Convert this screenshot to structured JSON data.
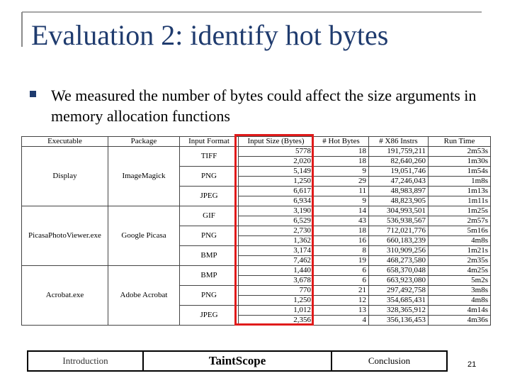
{
  "title": "Evaluation 2: identify hot bytes",
  "bullet": "We measured the number of bytes could affect the size arguments in memory allocation functions",
  "table": {
    "header": [
      "Executable",
      "Package",
      "Input Format",
      "Input Size (Bytes)",
      "# Hot Bytes",
      "# X86 Instrs",
      "Run Time"
    ],
    "groups": [
      {
        "executable": "Display",
        "package": "ImageMagick",
        "formats": [
          {
            "format": "TIFF",
            "rows": [
              [
                "5778",
                "18",
                "191,759,211",
                "2m53s"
              ],
              [
                "2,020",
                "18",
                "82,640,260",
                "1m30s"
              ]
            ]
          },
          {
            "format": "PNG",
            "rows": [
              [
                "5,149",
                "9",
                "19,051,746",
                "1m54s"
              ],
              [
                "1,250",
                "29",
                "47,246,043",
                "1m8s"
              ]
            ]
          },
          {
            "format": "JPEG",
            "rows": [
              [
                "6,617",
                "11",
                "48,983,897",
                "1m13s"
              ],
              [
                "6,934",
                "9",
                "48,823,905",
                "1m11s"
              ]
            ]
          }
        ]
      },
      {
        "executable": "PicasaPhotoViewer.exe",
        "package": "Google Picasa",
        "formats": [
          {
            "format": "GIF",
            "rows": [
              [
                "3,190",
                "14",
                "304,993,501",
                "1m25s"
              ],
              [
                "6,529",
                "43",
                "536,938,567",
                "2m57s"
              ]
            ]
          },
          {
            "format": "PNG",
            "rows": [
              [
                "2,730",
                "18",
                "712,021,776",
                "5m16s"
              ],
              [
                "1,362",
                "16",
                "660,183,239",
                "4m8s"
              ]
            ]
          },
          {
            "format": "BMP",
            "rows": [
              [
                "3,174",
                "8",
                "310,909,256",
                "1m21s"
              ],
              [
                "7,462",
                "19",
                "468,273,580",
                "2m35s"
              ]
            ]
          }
        ]
      },
      {
        "executable": "Acrobat.exe",
        "package": "Adobe Acrobat",
        "formats": [
          {
            "format": "BMP",
            "rows": [
              [
                "1,440",
                "6",
                "658,370,048",
                "4m25s"
              ],
              [
                "3,678",
                "6",
                "663,923,080",
                "5m2s"
              ]
            ]
          },
          {
            "format": "PNG",
            "rows": [
              [
                "770",
                "21",
                "297,492,758",
                "3m8s"
              ],
              [
                "1,250",
                "12",
                "354,685,431",
                "4m8s"
              ]
            ]
          },
          {
            "format": "JPEG",
            "rows": [
              [
                "1,012",
                "13",
                "328,365,912",
                "4m14s"
              ],
              [
                "2,356",
                "4",
                "356,136,453",
                "4m36s"
              ]
            ]
          }
        ]
      }
    ]
  },
  "footer": {
    "tabs": [
      "Introduction",
      "TaintScope",
      "Conclusion"
    ],
    "page": "21"
  }
}
